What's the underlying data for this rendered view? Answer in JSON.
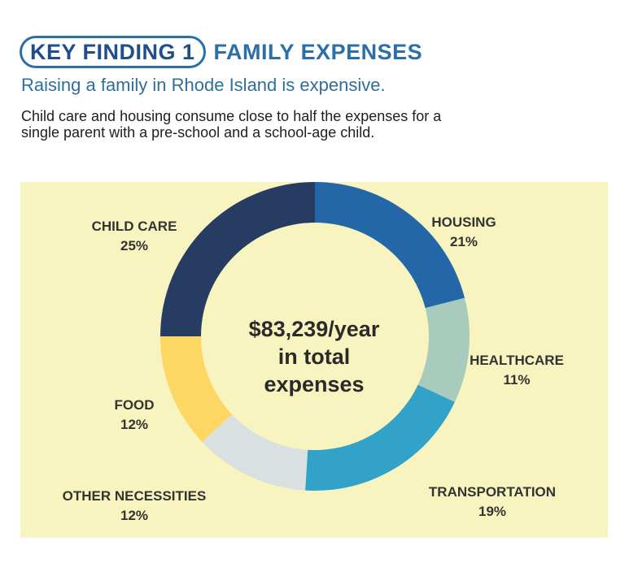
{
  "header": {
    "badge": "KEY FINDING 1",
    "title": "FAMILY EXPENSES",
    "subtitle": "Raising a family in Rhode Island is expensive.",
    "description_line1": "Child care and housing consume close to half the expenses for a",
    "description_line2": "single parent with a pre-school and a school-age child."
  },
  "chart_data": {
    "type": "pie",
    "categories": [
      "HOUSING",
      "HEALTHCARE",
      "TRANSPORTATION",
      "OTHER NECESSITIES",
      "FOOD",
      "CHILD CARE"
    ],
    "values": [
      21,
      11,
      19,
      12,
      12,
      25
    ],
    "value_labels": [
      "21%",
      "11%",
      "19%",
      "12%",
      "12%",
      "25%"
    ],
    "colors": [
      "#2367a8",
      "#a8cbbe",
      "#33a2c9",
      "#d8e1df",
      "#fdd663",
      "#263c63"
    ],
    "center_line1": "$83,239/year",
    "center_line2": "in total",
    "center_line3": "expenses",
    "donut": true
  }
}
